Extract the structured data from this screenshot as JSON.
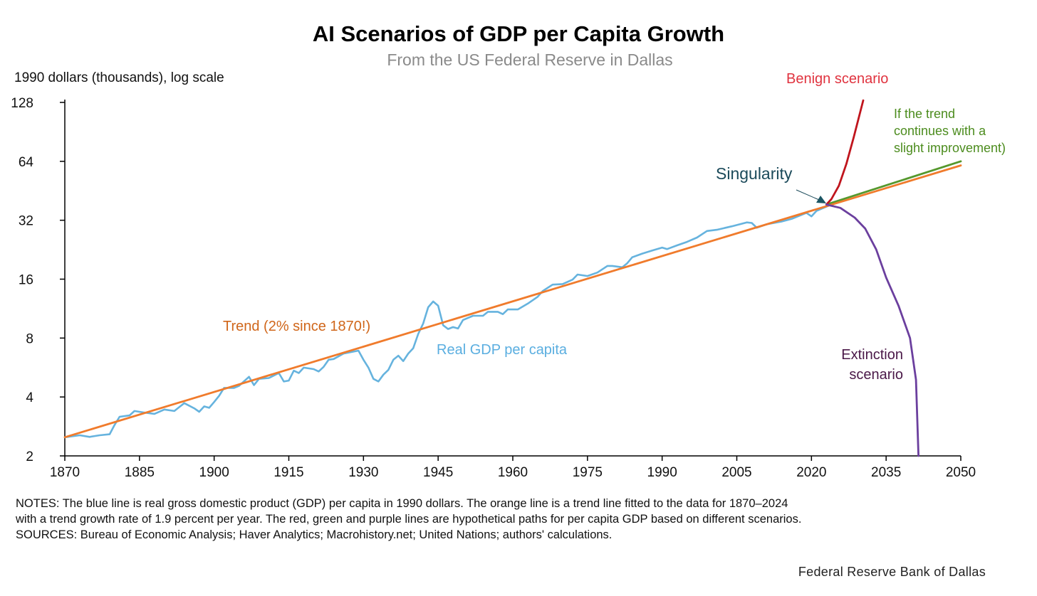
{
  "chart_data": {
    "type": "line",
    "title": "AI Scenarios of GDP per Capita Growth",
    "subtitle": "From the US Federal Reserve in Dallas",
    "ylabel": "1990 dollars (thousands),  log scale",
    "xlabel": "",
    "yscale": "log2",
    "ylim": [
      2,
      128
    ],
    "xlim": [
      1870,
      2050
    ],
    "yticks": [
      "128",
      "64",
      "32",
      "16",
      "8",
      "4",
      "2"
    ],
    "ytick_values": [
      128,
      64,
      32,
      16,
      8,
      4,
      2
    ],
    "xticks": [
      "1870",
      "1885",
      "1900",
      "1915",
      "1930",
      "1945",
      "1960",
      "1975",
      "1990",
      "2005",
      "2020",
      "2035",
      "2050"
    ],
    "xtick_values": [
      1870,
      1885,
      1900,
      1915,
      1930,
      1945,
      1960,
      1975,
      1990,
      2005,
      2020,
      2035,
      2050
    ],
    "grid": false,
    "colors": {
      "real": "#66b3de",
      "trend": "#f07b2c",
      "benign": "#c0151d",
      "green": "#55982d",
      "extinction": "#6b3f9e"
    },
    "series": [
      {
        "name": "Real GDP per capita",
        "label": "Real GDP per capita",
        "x": [
          1870,
          1873,
          1875,
          1877,
          1879,
          1880,
          1881,
          1883,
          1884,
          1886,
          1888,
          1890,
          1892,
          1894,
          1896,
          1897,
          1898,
          1899,
          1900,
          1901,
          1902,
          1904,
          1905,
          1907,
          1908,
          1909,
          1911,
          1913,
          1914,
          1915,
          1916,
          1917,
          1918,
          1920,
          1921,
          1922,
          1923,
          1924,
          1926,
          1929,
          1930,
          1931,
          1932,
          1933,
          1934,
          1935,
          1936,
          1937,
          1938,
          1939,
          1940,
          1941,
          1942,
          1943,
          1944,
          1945,
          1946,
          1947,
          1948,
          1949,
          1950,
          1952,
          1954,
          1955,
          1957,
          1958,
          1959,
          1961,
          1963,
          1965,
          1966,
          1968,
          1970,
          1972,
          1973,
          1975,
          1977,
          1979,
          1980,
          1982,
          1983,
          1984,
          1986,
          1988,
          1990,
          1991,
          1993,
          1995,
          1997,
          1999,
          2001,
          2004,
          2007,
          2008,
          2009,
          2011,
          2014,
          2016,
          2019,
          2020,
          2021,
          2024
        ],
        "values": [
          2.49,
          2.55,
          2.5,
          2.55,
          2.58,
          2.88,
          3.17,
          3.22,
          3.39,
          3.33,
          3.28,
          3.45,
          3.39,
          3.72,
          3.5,
          3.36,
          3.58,
          3.52,
          3.77,
          4.06,
          4.45,
          4.45,
          4.56,
          5.07,
          4.6,
          4.95,
          5.0,
          5.3,
          4.8,
          4.85,
          5.45,
          5.3,
          5.65,
          5.55,
          5.4,
          5.7,
          6.2,
          6.25,
          6.67,
          6.9,
          6.2,
          5.65,
          4.95,
          4.8,
          5.2,
          5.5,
          6.2,
          6.5,
          6.1,
          6.67,
          7.1,
          8.4,
          9.5,
          11.5,
          12.3,
          11.7,
          9.3,
          8.9,
          9.1,
          8.95,
          9.9,
          10.4,
          10.4,
          10.9,
          10.9,
          10.6,
          11.2,
          11.2,
          12.0,
          13.0,
          13.9,
          15.0,
          15.1,
          15.9,
          16.9,
          16.6,
          17.3,
          18.7,
          18.7,
          18.4,
          19.3,
          20.7,
          21.6,
          22.4,
          23.2,
          22.8,
          23.8,
          24.8,
          26.1,
          28.2,
          28.6,
          29.8,
          31.2,
          31.0,
          29.3,
          30.5,
          31.5,
          32.5,
          34.9,
          33.5,
          35.7,
          38.5
        ]
      },
      {
        "name": "Trend",
        "label": "Trend (2% since 1870!)",
        "x": [
          1870,
          2050
        ],
        "values": [
          2.49,
          61
        ]
      },
      {
        "name": "Benign scenario",
        "label": "Benign scenario",
        "x": [
          2023,
          2024,
          2025.5,
          2027,
          2028.5,
          2030.4
        ],
        "values": [
          38.5,
          41,
          48,
          62,
          85,
          131
        ]
      },
      {
        "name": "If the trend continues with a slight improvement)",
        "label_lines": [
          "If the trend",
          "continues with a",
          "slight improvement)"
        ],
        "x": [
          2023,
          2050
        ],
        "values": [
          38.5,
          64
        ]
      },
      {
        "name": "Extinction scenario",
        "label_lines": [
          "Extinction",
          "scenario"
        ],
        "x": [
          2023,
          2025.8,
          2028.7,
          2030.8,
          2033,
          2035,
          2037.5,
          2039.8,
          2041,
          2041.5
        ],
        "values": [
          38.5,
          37,
          33,
          29,
          22.7,
          16.3,
          11.7,
          8,
          4.9,
          2
        ]
      }
    ],
    "annotations": [
      {
        "text": "Singularity",
        "x": 2023,
        "y": 38.5
      }
    ]
  },
  "notes": "NOTES: The blue line is real gross domestic product (GDP) per capita in 1990 dollars. The orange line is a trend line fitted to the data for 1870–2024 with a trend growth rate of 1.9 percent per year. The red, green and purple lines are hypothetical paths for per capita GDP based on different scenarios.",
  "sources": "SOURCES: Bureau of Economic Analysis; Haver Analytics; Macrohistory.net; United Nations; authors' calculations.",
  "footer": "Federal Reserve Bank of Dallas"
}
